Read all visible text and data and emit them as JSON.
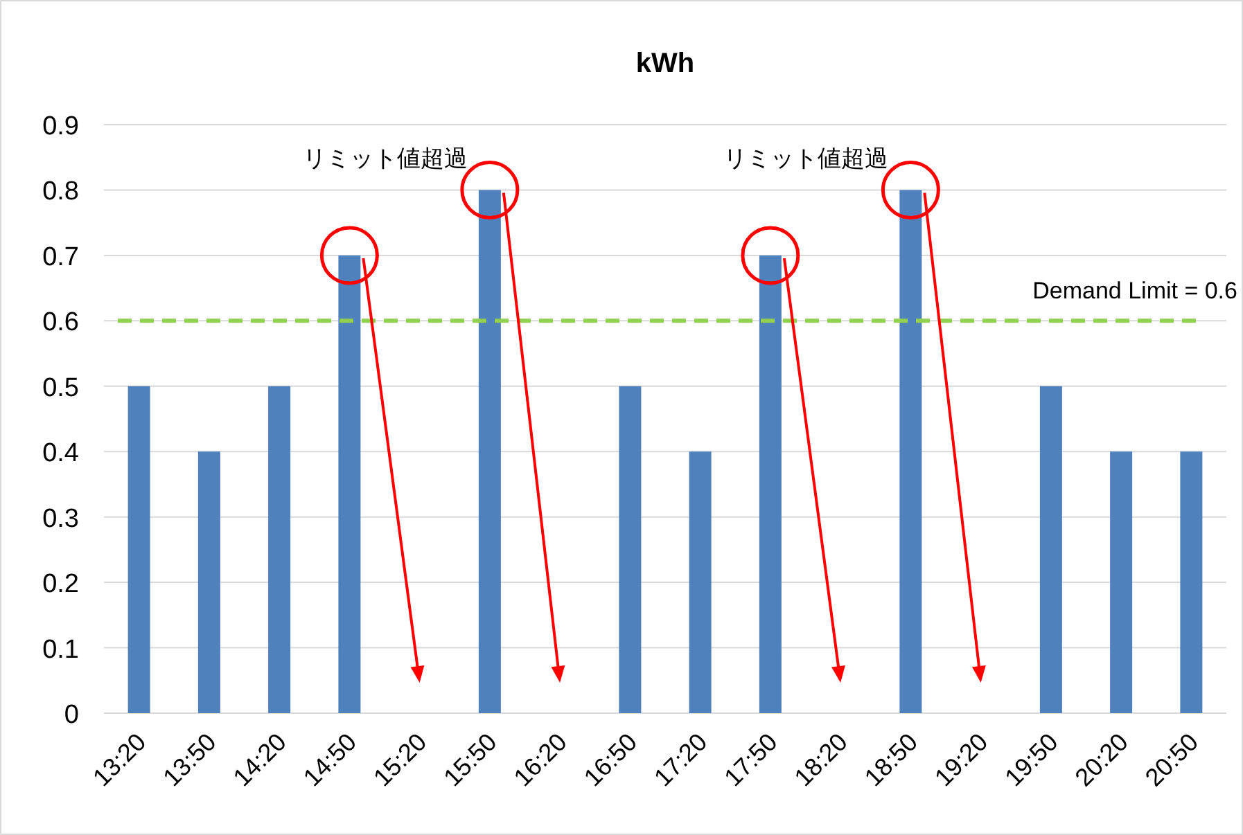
{
  "chart_data": {
    "type": "bar",
    "title": "kWh",
    "categories": [
      "13:20",
      "13:50",
      "14:20",
      "14:50",
      "15:20",
      "15:50",
      "16:20",
      "16:50",
      "17:20",
      "17:50",
      "18:20",
      "18:50",
      "19:20",
      "19:50",
      "20:20",
      "20:50"
    ],
    "values": [
      0.5,
      0.4,
      0.5,
      0.7,
      null,
      0.8,
      null,
      0.5,
      0.4,
      0.7,
      null,
      0.8,
      null,
      0.5,
      0.4,
      0.4
    ],
    "color": "#4f81bd",
    "ylim": [
      0,
      0.9
    ],
    "yticks": [
      0,
      0.1,
      0.2,
      0.3,
      0.4,
      0.5,
      0.6,
      0.7,
      0.8,
      0.9
    ],
    "grid": "y",
    "ref_lines": [
      {
        "axis": "y",
        "value": 0.6,
        "label": "Demand Limit = 0.6",
        "color": "#92d050",
        "line_style": "dashed"
      }
    ],
    "annotations": [
      "リミット値超過",
      "リミット値超過"
    ]
  }
}
